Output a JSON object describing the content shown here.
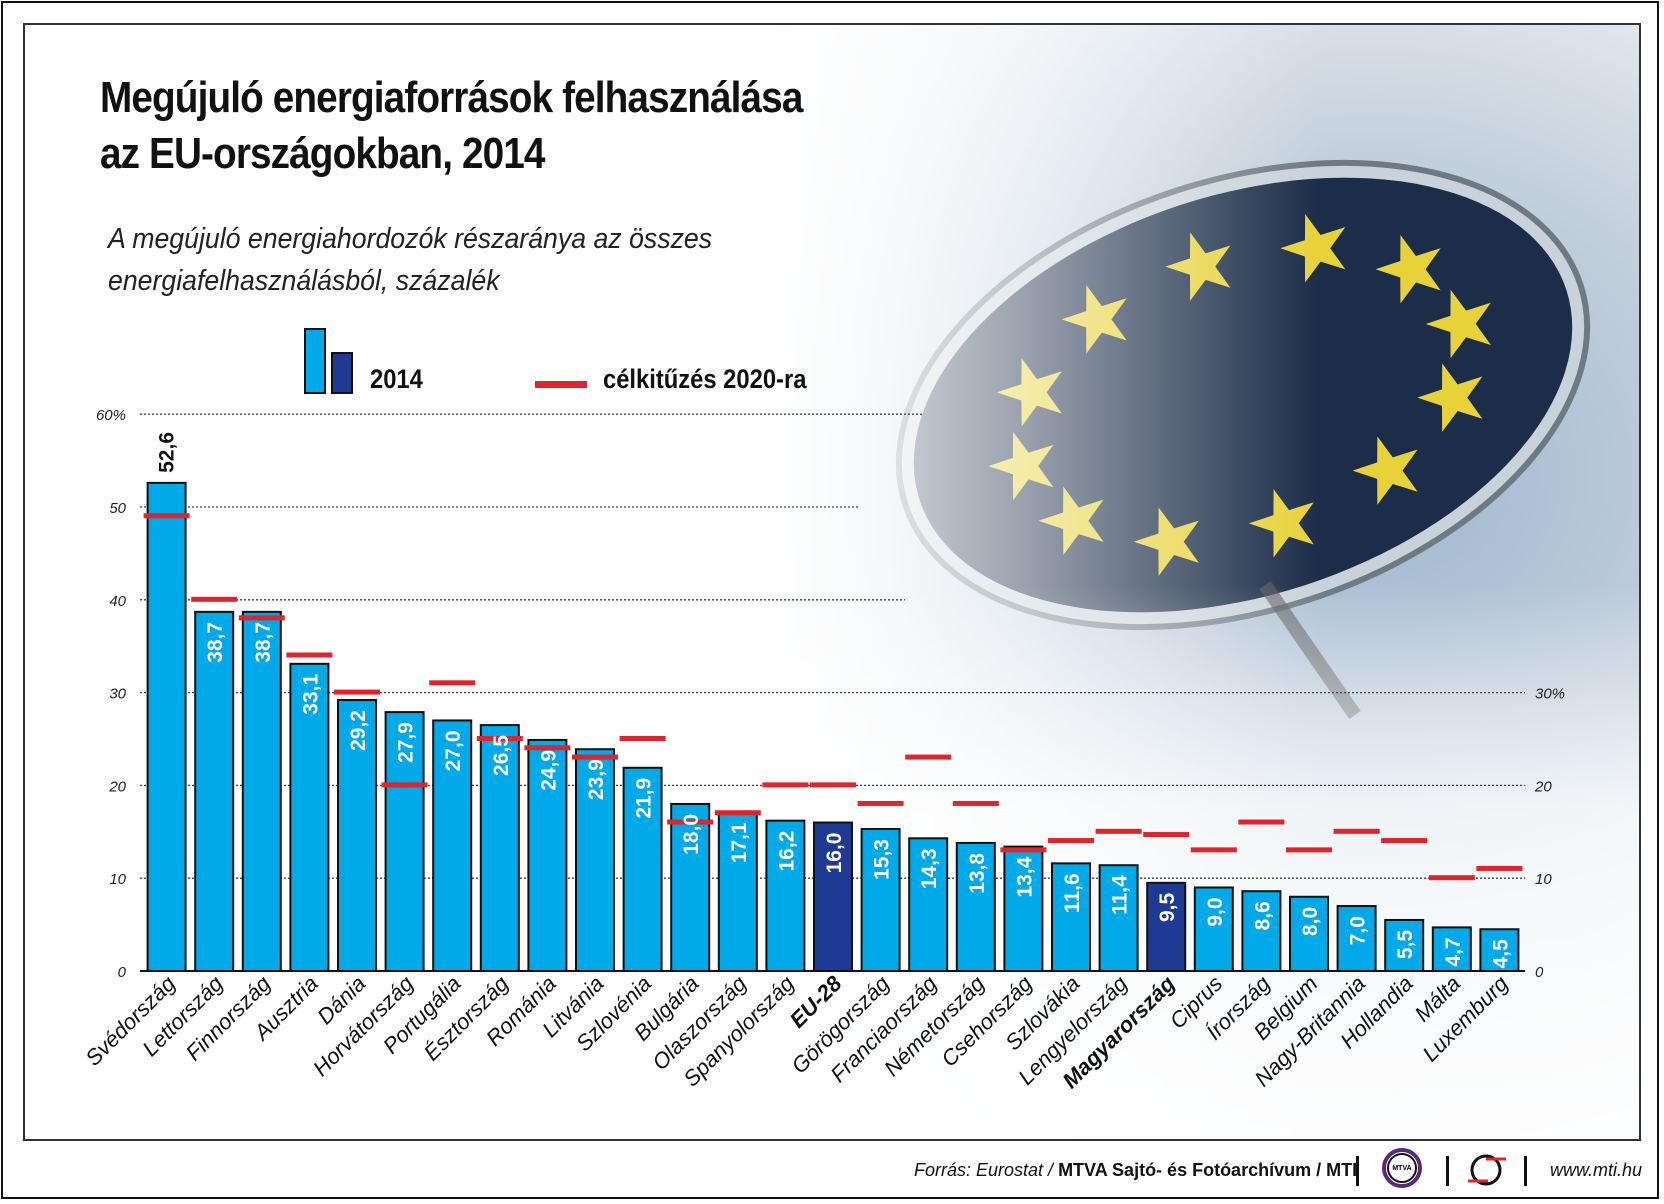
{
  "title_line1": "Megújuló energiaforrások felhasználása",
  "title_line2": "az EU-országokban, 2014",
  "subtitle_line1": "A megújuló energiahordozók részaránya az összes",
  "subtitle_line2": "energiafelhasználásból, százalék",
  "legend": {
    "bars": "2014",
    "target": "célkitűzés 2020-ra"
  },
  "colors": {
    "bar": "#00a9e8",
    "highlight": "#1f3a93",
    "target": "#e0242e"
  },
  "footer": {
    "source_prefix": "Forrás: Eurostat /",
    "source_bold": "MTVA Sajtó- és Fotóarchívum / MTI",
    "logo1": "MTVA",
    "url": "www.mti.hu"
  },
  "chart_data": {
    "type": "bar",
    "ylim": [
      0,
      60
    ],
    "grid": true,
    "left_ticks": [
      "0",
      "10",
      "20",
      "30",
      "40",
      "50",
      "60%"
    ],
    "right_ticks": [
      "0",
      "10",
      "20",
      "30%"
    ],
    "legend_placement": "top",
    "categories": [
      "Svédország",
      "Lettország",
      "Finnország",
      "Ausztria",
      "Dánia",
      "Horvátország",
      "Portugália",
      "Észtország",
      "Románia",
      "Litvánia",
      "Szlovénia",
      "Bulgária",
      "Olaszország",
      "Spanyolország",
      "EU-28",
      "Görögország",
      "Franciaország",
      "Németország",
      "Csehország",
      "Szlovákia",
      "Lengyelország",
      "Magyarország",
      "Ciprus",
      "Írország",
      "Belgium",
      "Nagy-Britannia",
      "Hollandia",
      "Málta",
      "Luxemburg"
    ],
    "highlighted": [
      "EU-28",
      "Magyarország"
    ],
    "series": [
      {
        "name": "2014",
        "values": [
          52.6,
          38.7,
          38.7,
          33.1,
          29.2,
          27.9,
          27.0,
          26.5,
          24.9,
          23.9,
          21.9,
          18.0,
          17.1,
          16.2,
          16.0,
          15.3,
          14.3,
          13.8,
          13.4,
          11.6,
          11.4,
          9.5,
          9.0,
          8.6,
          8.0,
          7.0,
          5.5,
          4.7,
          4.5
        ]
      },
      {
        "name": "célkitűzés 2020-ra",
        "values": [
          49,
          40,
          38,
          34,
          30,
          20,
          31,
          25,
          24,
          23,
          25,
          16,
          17,
          20,
          20,
          18,
          23,
          18,
          13,
          14,
          15,
          14.65,
          13,
          16,
          13,
          15,
          14,
          10,
          11
        ]
      }
    ],
    "value_labels": [
      "52,6",
      "38,7",
      "38,7",
      "33,1",
      "29,2",
      "27,9",
      "27,0",
      "26,5",
      "24,9",
      "23,9",
      "21,9",
      "18,0",
      "17,1",
      "16,2",
      "16,0",
      "15,3",
      "14,3",
      "13,8",
      "13,4",
      "11,6",
      "11,4",
      "9,5",
      "9,0",
      "8,6",
      "8,0",
      "7,0",
      "5,5",
      "4,7",
      "4,5"
    ]
  }
}
